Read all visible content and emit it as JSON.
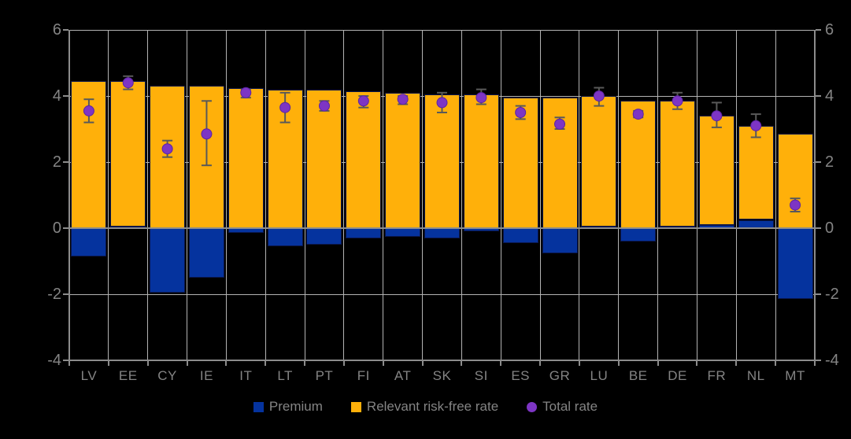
{
  "chart_data": {
    "type": "bar",
    "subtype": "stacked bars with scatter overlay and error bars",
    "categories": [
      "LV",
      "EE",
      "CY",
      "IE",
      "IT",
      "LT",
      "PT",
      "FI",
      "AT",
      "SK",
      "SI",
      "ES",
      "GR",
      "LU",
      "BE",
      "DE",
      "FR",
      "NL",
      "MT"
    ],
    "series": [
      {
        "name": "Premium",
        "type": "bar",
        "values": [
          -0.85,
          0.05,
          -1.95,
          -1.5,
          -0.15,
          -0.55,
          -0.5,
          -0.3,
          -0.25,
          -0.3,
          -0.1,
          -0.45,
          -0.75,
          0.05,
          -0.4,
          0.05,
          0.1,
          0.25,
          -2.15
        ]
      },
      {
        "name": "Relevant risk-free rate",
        "type": "bar",
        "values": [
          4.45,
          4.4,
          4.3,
          4.3,
          4.25,
          4.2,
          4.2,
          4.15,
          4.1,
          4.05,
          4.05,
          3.95,
          3.95,
          3.95,
          3.85,
          3.8,
          3.3,
          2.85,
          2.85
        ]
      },
      {
        "name": "Total rate",
        "type": "scatter",
        "values": [
          3.55,
          4.4,
          2.4,
          2.85,
          4.1,
          3.65,
          3.7,
          3.85,
          3.9,
          3.8,
          3.95,
          3.5,
          3.15,
          4.0,
          3.45,
          3.85,
          3.4,
          3.1,
          0.7
        ],
        "error_low": [
          3.2,
          4.2,
          2.15,
          1.9,
          3.95,
          3.2,
          3.55,
          3.65,
          3.75,
          3.5,
          3.75,
          3.3,
          3.0,
          3.7,
          3.35,
          3.6,
          3.05,
          2.75,
          0.5
        ],
        "error_high": [
          3.9,
          4.6,
          2.65,
          3.85,
          4.2,
          4.1,
          3.85,
          4.0,
          4.0,
          4.1,
          4.2,
          3.7,
          3.35,
          4.25,
          3.55,
          4.1,
          3.8,
          3.45,
          0.9
        ]
      }
    ],
    "ylim": [
      -4,
      6
    ],
    "y_ticks": [
      6,
      4,
      2,
      0,
      -2,
      -4
    ],
    "grid": true,
    "legend_position": "bottom",
    "title": "",
    "xlabel": "",
    "ylabel": ""
  },
  "colors": {
    "premium": "#05339E",
    "risk_free": "#FFB00A",
    "total": "#7D35C4",
    "total_edge": "#5B24A3",
    "error_bar": "#595959",
    "grid": "#B3B3B3",
    "axis": "#8C8C8C",
    "zero_line": "#8C8C8C",
    "label": "#848484",
    "bar_outline": "#0A164A",
    "background": "#000000"
  }
}
